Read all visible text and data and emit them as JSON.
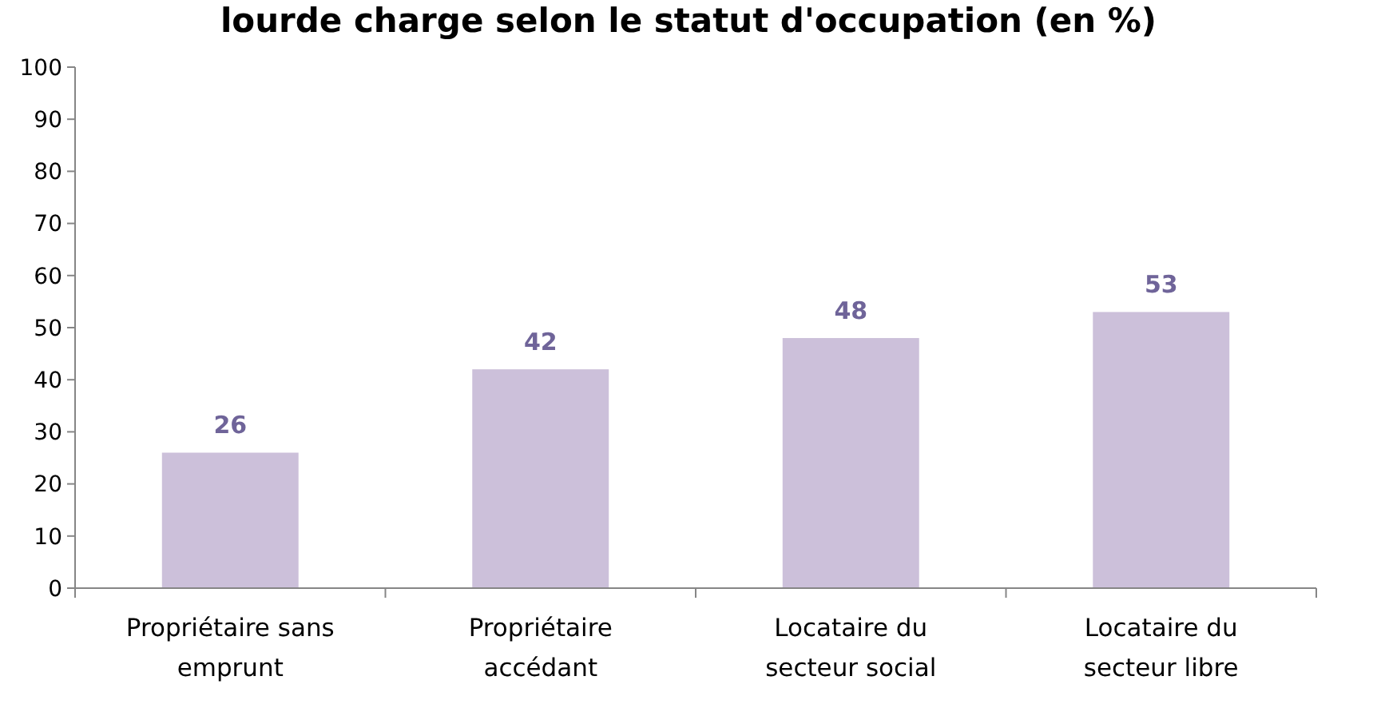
{
  "chart_data": {
    "type": "bar",
    "title": "lourde charge selon le statut d'occupation (en %)",
    "categories": [
      "Propriétaire sans emprunt",
      "Propriétaire accédant",
      "Locataire du secteur social",
      "Locataire du secteur libre"
    ],
    "values": [
      26,
      42,
      48,
      53
    ],
    "color": "#ccc0da",
    "ylim": [
      0,
      100
    ],
    "yticks": [
      0,
      10,
      20,
      30,
      40,
      50,
      60,
      70,
      80,
      90,
      100
    ],
    "grid": false,
    "data_labels": true
  }
}
